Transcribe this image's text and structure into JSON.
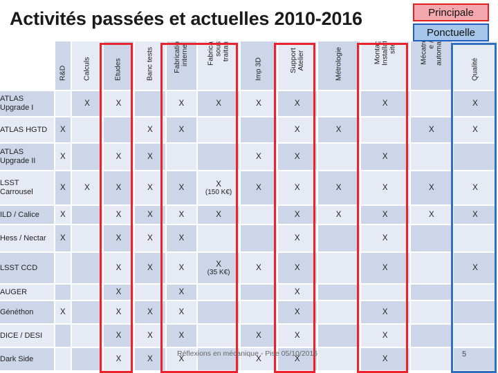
{
  "title": "Activités passées et actuelles 2010-2016",
  "legend": {
    "principal": "Principale",
    "ponctuelle": "Ponctuelle",
    "principal_color": "#f4a7ad",
    "ponctuelle_color": "#a6c6ea"
  },
  "columns": [
    [
      "R&D"
    ],
    [
      "Calculs"
    ],
    [
      "Etudes"
    ],
    [
      "Banc tests"
    ],
    [
      "Fabrication",
      "interne"
    ],
    [
      "Fabrication",
      "sous-",
      "traitance"
    ],
    [
      "Imp 3D"
    ],
    [
      "Support",
      "Atelier"
    ],
    [
      "Métrologie"
    ],
    [
      "Montage /",
      "Installation",
      "site"
    ],
    [
      "Mécatroniqu",
      "e /",
      "automatisme"
    ],
    [
      "Qualité"
    ]
  ],
  "rows": [
    {
      "label": "ATLAS Upgrade I",
      "cells": [
        [
          "",
          ""
        ],
        [
          "X",
          ""
        ],
        [
          "X",
          ""
        ],
        [
          "",
          ""
        ],
        [
          "X",
          ""
        ],
        [
          "X",
          ""
        ],
        [
          "X",
          ""
        ],
        [
          "X",
          ""
        ],
        [
          "",
          ""
        ],
        [
          "X",
          ""
        ],
        [
          "",
          ""
        ],
        [
          "X",
          ""
        ]
      ]
    },
    {
      "label": "ATLAS HGTD",
      "cells": [
        [
          "X",
          ""
        ],
        [
          "",
          ""
        ],
        [
          "",
          ""
        ],
        [
          "X",
          ""
        ],
        [
          "X",
          ""
        ],
        [
          "",
          ""
        ],
        [
          "",
          ""
        ],
        [
          "X",
          ""
        ],
        [
          "X",
          ""
        ],
        [
          "",
          ""
        ],
        [
          "X",
          ""
        ],
        [
          "X",
          ""
        ]
      ]
    },
    {
      "label": "ATLAS Upgrade II",
      "cells": [
        [
          "X",
          ""
        ],
        [
          "",
          ""
        ],
        [
          "X",
          ""
        ],
        [
          "X",
          ""
        ],
        [
          "",
          ""
        ],
        [
          "",
          ""
        ],
        [
          "X",
          ""
        ],
        [
          "X",
          ""
        ],
        [
          "",
          ""
        ],
        [
          "X",
          ""
        ],
        [
          "",
          ""
        ],
        [
          "",
          ""
        ]
      ]
    },
    {
      "label": "LSST Carrousel",
      "cells": [
        [
          "X",
          ""
        ],
        [
          "X",
          ""
        ],
        [
          "X",
          ""
        ],
        [
          "X",
          ""
        ],
        [
          "X",
          ""
        ],
        [
          "X",
          "(150 K€)"
        ],
        [
          "X",
          ""
        ],
        [
          "X",
          ""
        ],
        [
          "X",
          ""
        ],
        [
          "X",
          ""
        ],
        [
          "X",
          ""
        ],
        [
          "X",
          ""
        ]
      ]
    },
    {
      "label": "ILD / Calice",
      "cells": [
        [
          "X",
          ""
        ],
        [
          "",
          ""
        ],
        [
          "X",
          ""
        ],
        [
          "X",
          ""
        ],
        [
          "X",
          ""
        ],
        [
          "X",
          ""
        ],
        [
          "",
          ""
        ],
        [
          "X",
          ""
        ],
        [
          "X",
          ""
        ],
        [
          "X",
          ""
        ],
        [
          "X",
          ""
        ],
        [
          "X",
          ""
        ]
      ]
    },
    {
      "label": "Hess / Nectar",
      "cells": [
        [
          "X",
          ""
        ],
        [
          "",
          ""
        ],
        [
          "X",
          ""
        ],
        [
          "X",
          ""
        ],
        [
          "X",
          ""
        ],
        [
          "",
          ""
        ],
        [
          "",
          ""
        ],
        [
          "X",
          ""
        ],
        [
          "",
          ""
        ],
        [
          "X",
          ""
        ],
        [
          "",
          ""
        ],
        [
          "",
          ""
        ]
      ]
    },
    {
      "label": "LSST CCD",
      "cells": [
        [
          "",
          ""
        ],
        [
          "",
          ""
        ],
        [
          "X",
          ""
        ],
        [
          "X",
          ""
        ],
        [
          "X",
          ""
        ],
        [
          "X",
          "(35 K€)"
        ],
        [
          "X",
          ""
        ],
        [
          "X",
          ""
        ],
        [
          "",
          ""
        ],
        [
          "X",
          ""
        ],
        [
          "",
          ""
        ],
        [
          "X",
          ""
        ]
      ]
    },
    {
      "label": "AUGER",
      "cells": [
        [
          "",
          ""
        ],
        [
          "",
          ""
        ],
        [
          "X",
          ""
        ],
        [
          "",
          ""
        ],
        [
          "X",
          ""
        ],
        [
          "",
          ""
        ],
        [
          "",
          ""
        ],
        [
          "X",
          ""
        ],
        [
          "",
          ""
        ],
        [
          "",
          ""
        ],
        [
          "",
          ""
        ],
        [
          "",
          ""
        ]
      ]
    },
    {
      "label": "Généthon",
      "cells": [
        [
          "X",
          ""
        ],
        [
          "",
          ""
        ],
        [
          "X",
          ""
        ],
        [
          "X",
          ""
        ],
        [
          "X",
          ""
        ],
        [
          "",
          ""
        ],
        [
          "",
          ""
        ],
        [
          "X",
          ""
        ],
        [
          "",
          ""
        ],
        [
          "X",
          ""
        ],
        [
          "",
          ""
        ],
        [
          "",
          ""
        ]
      ]
    },
    {
      "label": "DICE / DESI",
      "cells": [
        [
          "",
          ""
        ],
        [
          "",
          ""
        ],
        [
          "X",
          ""
        ],
        [
          "X",
          ""
        ],
        [
          "X",
          ""
        ],
        [
          "",
          ""
        ],
        [
          "X",
          ""
        ],
        [
          "X",
          ""
        ],
        [
          "",
          ""
        ],
        [
          "X",
          ""
        ],
        [
          "",
          ""
        ],
        [
          "",
          ""
        ]
      ]
    },
    {
      "label": "Dark Side",
      "cells": [
        [
          "",
          ""
        ],
        [
          "",
          ""
        ],
        [
          "X",
          ""
        ],
        [
          "X",
          ""
        ],
        [
          "X",
          ""
        ],
        [
          "",
          ""
        ],
        [
          "X",
          ""
        ],
        [
          "X",
          ""
        ],
        [
          "",
          ""
        ],
        [
          "X",
          ""
        ],
        [
          "",
          ""
        ],
        [
          "",
          ""
        ]
      ]
    }
  ],
  "footer": "Réflexions en mécanique - Pise 05/10/2016",
  "page_number": "5"
}
